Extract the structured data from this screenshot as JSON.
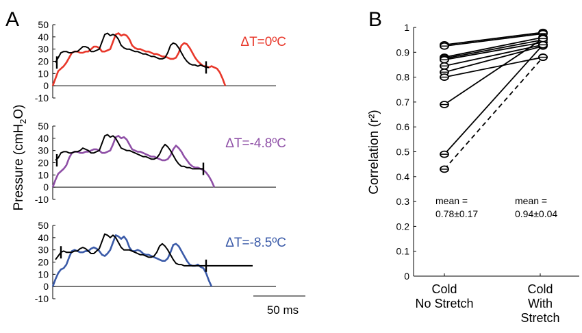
{
  "panel_a_label": "A",
  "panel_b_label": "B",
  "chart_data": [
    {
      "type": "line",
      "panel": "A",
      "ylabel_prefix": "Pressure (cmH",
      "ylabel_sub": "2",
      "ylabel_suffix": "O)",
      "scalebar_label": "50 ms",
      "ylim": [
        -10,
        50
      ],
      "yticks": [
        "50",
        "40",
        "30",
        "20",
        "10",
        "0",
        "-10"
      ],
      "panels": [
        {
          "label": "ΔT=0ºC",
          "color": "#e8372a",
          "x": [
            0,
            4,
            8,
            12,
            16,
            20,
            24,
            28,
            32,
            36,
            40,
            44,
            48,
            52,
            56,
            60,
            64,
            68,
            72,
            76,
            80,
            84,
            88,
            92,
            96,
            100,
            104,
            108,
            112,
            116,
            120,
            124,
            128,
            132,
            136,
            140,
            144,
            148,
            152,
            156,
            160,
            164,
            168,
            172,
            176,
            180,
            184,
            188,
            192,
            196,
            200,
            204,
            208,
            212,
            216,
            220,
            224,
            228,
            232,
            236,
            240,
            244,
            248,
            252,
            256,
            260,
            264,
            268,
            272,
            276,
            280,
            284,
            288,
            292,
            296,
            300,
            304,
            308
          ],
          "y": [
            0,
            6,
            12,
            14,
            16,
            19,
            23,
            27,
            28,
            28,
            27,
            27,
            28,
            28,
            30,
            32,
            32,
            31,
            28,
            28,
            29,
            30,
            36,
            42,
            43,
            41,
            42,
            41,
            38,
            33,
            31,
            30,
            30,
            29,
            28,
            28,
            27,
            26,
            26,
            25,
            24,
            24,
            23,
            22,
            22,
            23,
            27,
            33,
            35,
            34,
            31,
            27,
            23,
            20,
            18,
            16,
            16,
            15,
            16,
            15,
            14,
            11,
            6,
            0,
            0,
            0,
            0,
            0,
            0,
            0,
            0,
            0,
            0,
            0,
            0,
            0,
            0,
            0
          ],
          "black_x": [
            4,
            8,
            12,
            16,
            20,
            24,
            28,
            32,
            36,
            40,
            44,
            48,
            52,
            56,
            60,
            64,
            68,
            72,
            76,
            80,
            84,
            88,
            92,
            96,
            100,
            104,
            108,
            112,
            116,
            120,
            124,
            128,
            132,
            136,
            140,
            144,
            148,
            152,
            156,
            160,
            164,
            168,
            172,
            176,
            180,
            184,
            188,
            192,
            196,
            200,
            204,
            208,
            212,
            216,
            220,
            224,
            228
          ],
          "black_y": [
            19,
            23,
            27,
            28,
            28,
            27,
            27,
            28,
            28,
            30,
            32,
            32,
            31,
            28,
            28,
            29,
            30,
            36,
            42,
            43,
            41,
            42,
            41,
            38,
            33,
            31,
            30,
            30,
            29,
            28,
            28,
            27,
            26,
            26,
            25,
            24,
            24,
            23,
            22,
            22,
            23,
            27,
            33,
            35,
            34,
            31,
            27,
            23,
            20,
            18,
            17,
            17,
            16,
            17,
            16,
            15,
            15
          ],
          "marker_x": [
            6,
            224
          ]
        },
        {
          "label": "ΔT=-4.8ºC",
          "color": "#8e4fa6",
          "x": [
            0,
            4,
            8,
            12,
            16,
            20,
            24,
            28,
            32,
            36,
            40,
            44,
            48,
            52,
            56,
            60,
            64,
            68,
            72,
            76,
            80,
            84,
            88,
            92,
            96,
            100,
            104,
            108,
            112,
            116,
            120,
            124,
            128,
            132,
            136,
            140,
            144,
            148,
            152,
            156,
            160,
            164,
            168,
            172,
            176,
            180,
            184,
            188,
            192,
            196,
            200,
            204,
            208,
            212,
            216,
            220,
            224,
            228,
            232,
            236,
            240,
            244,
            248,
            252,
            256,
            260,
            264,
            268,
            272,
            276,
            280,
            284,
            288,
            292,
            296,
            300,
            304,
            308,
            312,
            316,
            320,
            324,
            328,
            332
          ],
          "y": [
            0,
            6,
            11,
            13,
            15,
            18,
            24,
            28,
            29,
            29,
            28,
            28,
            29,
            29,
            30,
            31,
            31,
            30,
            28,
            28,
            29,
            30,
            35,
            41,
            42,
            40,
            41,
            39,
            35,
            31,
            30,
            29,
            29,
            28,
            27,
            26,
            25,
            25,
            24,
            23,
            22,
            22,
            23,
            26,
            31,
            34,
            32,
            29,
            25,
            22,
            19,
            17,
            16,
            16,
            15,
            14,
            12,
            9,
            5,
            0,
            0,
            0,
            0,
            0,
            0,
            0,
            0,
            0,
            0,
            0,
            0,
            0,
            0,
            0,
            0,
            0,
            0,
            0,
            0,
            0,
            0,
            0,
            0,
            0
          ],
          "black_x": [
            4,
            8,
            12,
            16,
            20,
            24,
            28,
            32,
            36,
            40,
            44,
            48,
            52,
            56,
            60,
            64,
            68,
            72,
            76,
            80,
            84,
            88,
            92,
            96,
            100,
            104,
            108,
            112,
            116,
            120,
            124,
            128,
            132,
            136,
            140,
            144,
            148,
            152,
            156,
            160,
            164,
            168,
            172,
            176,
            180,
            184,
            188,
            192,
            196,
            200,
            204,
            208,
            212,
            216,
            220
          ],
          "black_y": [
            22,
            24,
            28,
            29,
            29,
            28,
            28,
            29,
            29,
            30,
            32,
            31,
            30,
            28,
            28,
            29,
            30,
            36,
            42,
            43,
            41,
            42,
            40,
            36,
            32,
            31,
            30,
            30,
            29,
            28,
            27,
            26,
            25,
            25,
            24,
            23,
            23,
            24,
            27,
            32,
            35,
            33,
            30,
            26,
            22,
            19,
            17,
            17,
            16,
            16,
            15,
            15,
            15,
            15,
            15
          ],
          "marker_x": [
            6,
            220
          ]
        },
        {
          "label": "ΔT=-8.5ºC",
          "color": "#3a5aa8",
          "x": [
            0,
            4,
            8,
            12,
            16,
            20,
            24,
            28,
            32,
            36,
            40,
            44,
            48,
            52,
            56,
            60,
            64,
            68,
            72,
            76,
            80,
            84,
            88,
            92,
            96,
            100,
            104,
            108,
            112,
            116,
            120,
            124,
            128,
            132,
            136,
            140,
            144,
            148,
            152,
            156,
            160,
            164,
            168,
            172,
            176,
            180,
            184,
            188,
            192,
            196,
            200,
            204,
            208,
            212,
            216,
            220,
            224,
            228,
            232,
            236,
            240,
            244,
            248,
            252,
            256,
            260,
            264,
            268,
            272,
            276,
            280,
            284,
            288,
            292,
            296,
            300,
            304,
            308,
            312,
            316,
            320,
            324,
            328,
            332,
            336,
            340,
            344,
            348,
            352,
            356,
            360
          ],
          "y": [
            0,
            6,
            11,
            14,
            15,
            18,
            24,
            29,
            30,
            29,
            28,
            28,
            29,
            29,
            31,
            32,
            31,
            29,
            26,
            25,
            27,
            30,
            36,
            42,
            41,
            39,
            41,
            38,
            32,
            29,
            29,
            30,
            29,
            27,
            26,
            26,
            25,
            24,
            23,
            22,
            21,
            21,
            23,
            28,
            34,
            35,
            33,
            29,
            25,
            21,
            18,
            17,
            17,
            18,
            16,
            15,
            11,
            5,
            0,
            0,
            0,
            0,
            0,
            0,
            0,
            0,
            0,
            0,
            0,
            0,
            0,
            0,
            0,
            0,
            0,
            0,
            0,
            0,
            0,
            0,
            0,
            0,
            0,
            0,
            0,
            0,
            0,
            0,
            0,
            0,
            0
          ],
          "black_x": [
            4,
            8,
            12,
            16,
            20,
            24,
            28,
            32,
            36,
            40,
            44,
            48,
            52,
            56,
            60,
            64,
            68,
            72,
            76,
            80,
            84,
            88,
            92,
            96,
            100,
            104,
            108,
            112,
            116,
            120,
            124,
            128,
            132,
            136,
            140,
            144,
            148,
            152,
            156,
            160,
            164,
            168,
            172,
            176,
            180,
            184,
            188,
            192,
            196,
            200,
            204,
            208,
            212,
            216,
            220,
            224,
            228,
            232,
            236,
            240,
            244,
            248,
            252,
            256,
            260,
            264,
            268,
            272,
            276,
            280,
            284,
            288,
            292
          ],
          "black_y": [
            22,
            25,
            28,
            29,
            28,
            28,
            28,
            29,
            29,
            31,
            32,
            31,
            29,
            27,
            27,
            29,
            31,
            37,
            43,
            42,
            40,
            42,
            40,
            36,
            32,
            30,
            30,
            30,
            29,
            28,
            27,
            26,
            26,
            25,
            24,
            24,
            25,
            28,
            33,
            35,
            33,
            30,
            26,
            22,
            19,
            18,
            18,
            17,
            17,
            17,
            17,
            17,
            17,
            17,
            17,
            17,
            17,
            17,
            17,
            17,
            17,
            17,
            17,
            17,
            17,
            17,
            17,
            17,
            17,
            17,
            17,
            17,
            17
          ],
          "marker_x": [
            12,
            224
          ]
        }
      ]
    },
    {
      "type": "scatter",
      "panel": "B",
      "ylabel": "Correlation (r²)",
      "ylim": [
        0,
        1
      ],
      "yticks": [
        "0",
        "0.1",
        "0.2",
        "0.3",
        "0.4",
        "0.5",
        "0.6",
        "0.7",
        "0.8",
        "0.9",
        "1"
      ],
      "categories": [
        "Cold\nNo Stretch",
        "Cold\nWith\nStretch"
      ],
      "category_lines": [
        [
          "Cold",
          "No Stretch"
        ],
        [
          "Cold",
          "With",
          "Stretch"
        ]
      ],
      "pairs": [
        {
          "left": 0.93,
          "right": 0.98,
          "style": "solid"
        },
        {
          "left": 0.925,
          "right": 0.975,
          "style": "solid"
        },
        {
          "left": 0.88,
          "right": 0.96,
          "style": "solid"
        },
        {
          "left": 0.875,
          "right": 0.95,
          "style": "solid"
        },
        {
          "left": 0.87,
          "right": 0.94,
          "style": "solid"
        },
        {
          "left": 0.845,
          "right": 0.93,
          "style": "solid"
        },
        {
          "left": 0.82,
          "right": 0.925,
          "style": "solid"
        },
        {
          "left": 0.8,
          "right": 0.88,
          "style": "solid"
        },
        {
          "left": 0.69,
          "right": 0.955,
          "style": "solid"
        },
        {
          "left": 0.49,
          "right": 0.93,
          "style": "solid"
        },
        {
          "left": 0.43,
          "right": 0.88,
          "style": "dashed"
        }
      ],
      "annotations": [
        {
          "line1": "mean =",
          "line2": "0.78±0.17"
        },
        {
          "line1": "mean =",
          "line2": "0.94±0.04"
        }
      ]
    }
  ]
}
